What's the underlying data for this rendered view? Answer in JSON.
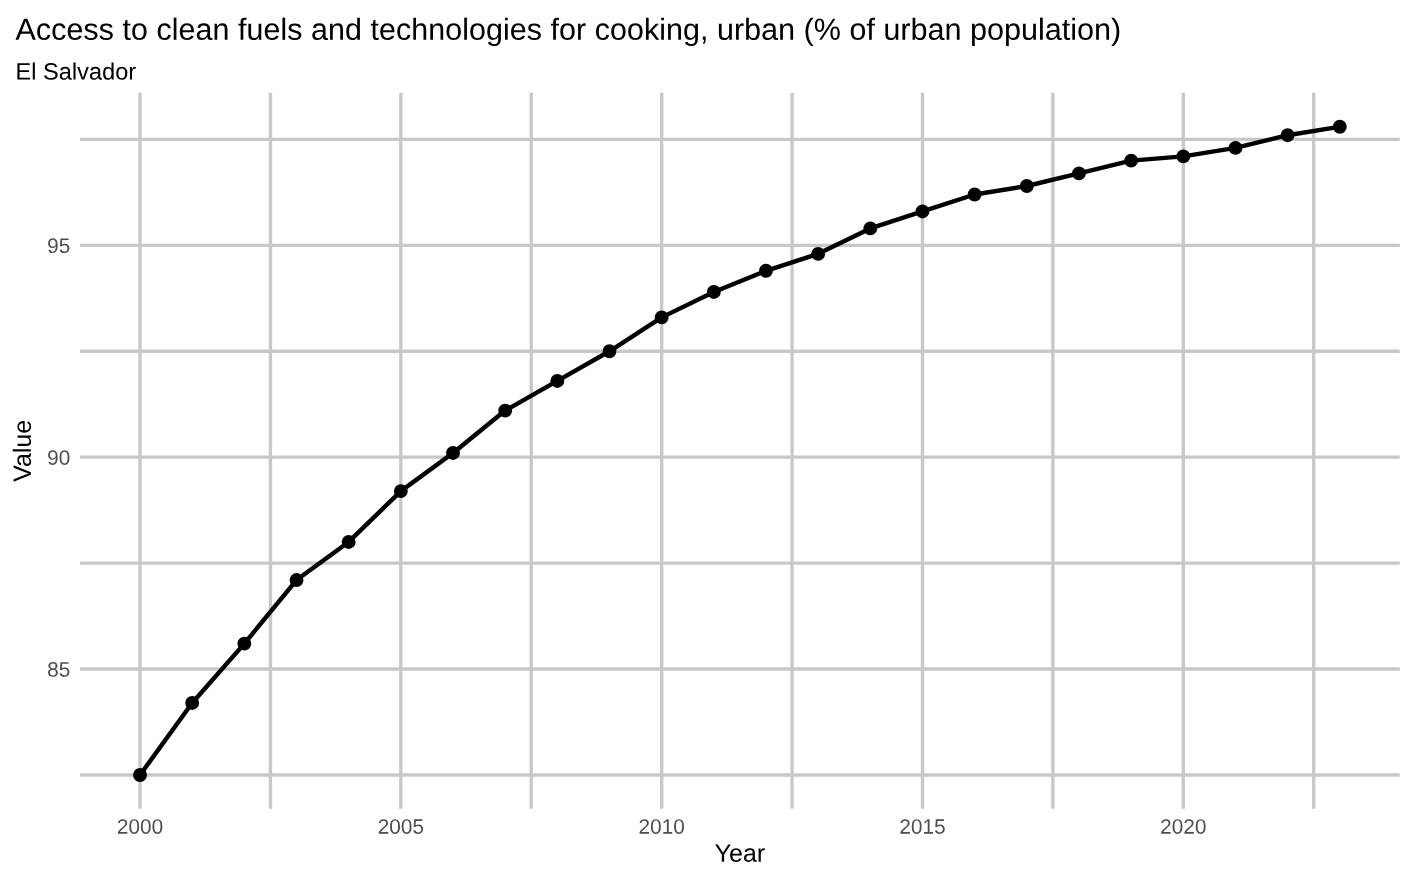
{
  "chart_data": {
    "type": "line",
    "title": "Access to clean fuels and technologies for cooking, urban (% of urban population)",
    "subtitle": "El Salvador",
    "xlabel": "Year",
    "ylabel": "Value",
    "x": [
      2000,
      2001,
      2002,
      2003,
      2004,
      2005,
      2006,
      2007,
      2008,
      2009,
      2010,
      2011,
      2012,
      2013,
      2014,
      2015,
      2016,
      2017,
      2018,
      2019,
      2020,
      2021,
      2022,
      2023
    ],
    "series": [
      {
        "color": "#000000",
        "values": [
          82.5,
          84.2,
          85.6,
          87.1,
          88.0,
          89.2,
          90.1,
          91.1,
          91.8,
          92.5,
          93.3,
          93.9,
          94.4,
          94.8,
          95.4,
          95.8,
          96.2,
          96.4,
          96.7,
          97.0,
          97.1,
          97.3,
          97.6,
          97.8
        ]
      }
    ],
    "xlim": [
      1998.85,
      2024.15
    ],
    "ylim": [
      81.7,
      98.6
    ],
    "xticks": [
      2000,
      {
        "value": 2002.5,
        "label": null
      },
      2005,
      {
        "value": 2007.5,
        "label": null
      },
      2010,
      {
        "value": 2012.5,
        "label": null
      },
      2015,
      {
        "value": 2017.5,
        "label": null
      },
      2020,
      {
        "value": 2022.5,
        "label": null
      }
    ],
    "yticks": [
      {
        "value": 82.5,
        "label": null
      },
      85,
      {
        "value": 87.5,
        "label": null
      },
      90,
      {
        "value": 92.5,
        "label": null
      },
      95,
      {
        "value": 97.5,
        "label": null
      }
    ],
    "grid": true,
    "marker": "circle",
    "line_style": "solid",
    "legend": false
  }
}
